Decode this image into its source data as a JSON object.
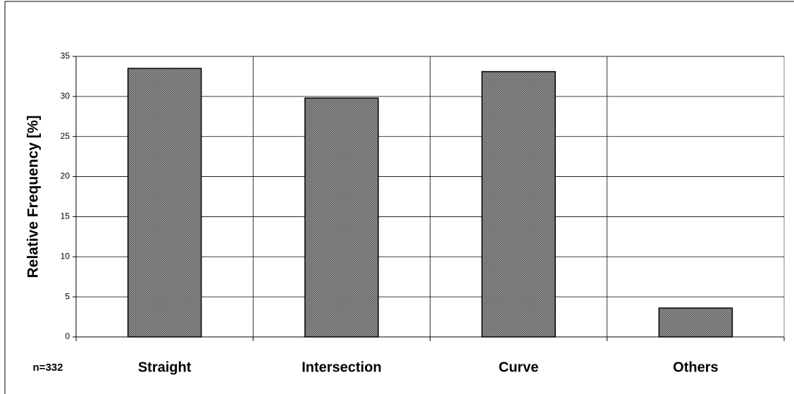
{
  "chart_data": {
    "type": "bar",
    "y_label": "Relative Frequency [%]",
    "annotation": "n=332",
    "categories": [
      "Straight",
      "Intersection",
      "Curve",
      "Others"
    ],
    "values": [
      33.5,
      29.8,
      33.1,
      3.6
    ],
    "color": "#9a9a9a",
    "ylim": [
      0,
      35
    ],
    "yticks": [
      0,
      5,
      10,
      15,
      20,
      25,
      30,
      35
    ],
    "grid": true
  }
}
